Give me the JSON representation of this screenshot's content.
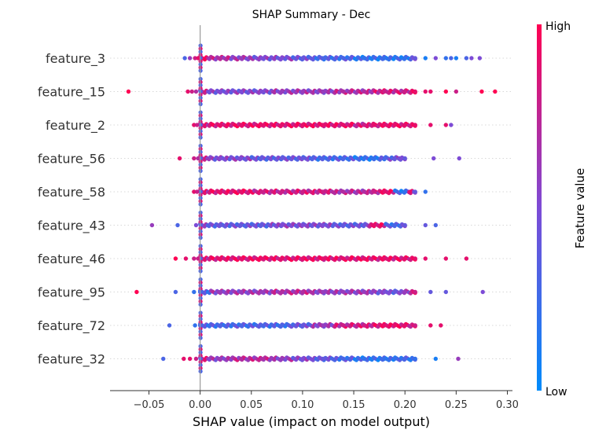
{
  "chart_data": {
    "type": "scatter",
    "title": "SHAP Summary - Dec",
    "xlabel": "SHAP value (impact on model output)",
    "xlim": [
      -0.088,
      0.305
    ],
    "xticks": [
      -0.05,
      0.0,
      0.05,
      0.1,
      0.15,
      0.2,
      0.25,
      0.3
    ],
    "xtick_labels": [
      "−0.05",
      "0.00",
      "0.05",
      "0.10",
      "0.15",
      "0.20",
      "0.25",
      "0.30"
    ],
    "colorbar": {
      "label": "Feature value",
      "high": "High",
      "low": "Low",
      "high_color": "#ff0052",
      "low_color": "#008bfb"
    },
    "features": [
      {
        "name": "feature_3",
        "x": [
          -0.015,
          -0.01,
          -0.005,
          -0.002,
          0.02,
          0.04,
          0.06,
          0.08,
          0.1,
          0.12,
          0.14,
          0.16,
          0.18,
          0.2,
          0.21,
          0.22,
          0.23,
          0.24,
          0.245,
          0.25,
          0.26,
          0.265,
          0.273
        ],
        "v": [
          0.3,
          0.6,
          0.8,
          0.9,
          0.7,
          0.6,
          0.5,
          0.5,
          0.4,
          0.3,
          0.3,
          0.2,
          0.2,
          0.2,
          0.4,
          0.1,
          0.5,
          0.2,
          0.3,
          0.1,
          0.3,
          0.5,
          0.5
        ]
      },
      {
        "name": "feature_15",
        "x": [
          -0.07,
          -0.012,
          -0.008,
          -0.004,
          0.02,
          0.04,
          0.06,
          0.08,
          0.1,
          0.12,
          0.14,
          0.16,
          0.18,
          0.2,
          0.21,
          0.22,
          0.225,
          0.24,
          0.25,
          0.275,
          0.288
        ],
        "v": [
          1.0,
          0.9,
          0.8,
          0.7,
          0.5,
          0.5,
          0.5,
          0.6,
          0.6,
          0.6,
          0.7,
          0.7,
          0.8,
          0.8,
          0.9,
          0.9,
          0.9,
          1.0,
          0.8,
          1.0,
          1.0
        ]
      },
      {
        "name": "feature_2",
        "x": [
          -0.006,
          -0.003,
          0.02,
          0.04,
          0.06,
          0.08,
          0.1,
          0.12,
          0.14,
          0.16,
          0.17,
          0.18,
          0.19,
          0.2,
          0.21,
          0.225,
          0.24,
          0.245
        ],
        "v": [
          0.9,
          0.8,
          0.9,
          0.9,
          0.9,
          0.9,
          0.9,
          0.9,
          0.9,
          0.8,
          0.9,
          0.9,
          0.9,
          0.9,
          0.9,
          0.9,
          0.9,
          0.5
        ]
      },
      {
        "name": "feature_56",
        "x": [
          -0.02,
          -0.006,
          -0.002,
          0.02,
          0.04,
          0.06,
          0.08,
          0.1,
          0.12,
          0.14,
          0.16,
          0.17,
          0.18,
          0.19,
          0.195,
          0.2,
          0.228,
          0.253
        ],
        "v": [
          0.9,
          0.8,
          0.7,
          0.5,
          0.5,
          0.4,
          0.4,
          0.4,
          0.3,
          0.3,
          0.2,
          0.2,
          0.3,
          0.4,
          0.5,
          0.4,
          0.5,
          0.5
        ]
      },
      {
        "name": "feature_58",
        "x": [
          -0.006,
          -0.003,
          0.02,
          0.04,
          0.06,
          0.08,
          0.1,
          0.12,
          0.14,
          0.16,
          0.17,
          0.18,
          0.2,
          0.205,
          0.21,
          0.22
        ],
        "v": [
          0.9,
          0.8,
          0.9,
          0.9,
          0.8,
          0.8,
          0.8,
          0.8,
          0.7,
          0.7,
          0.8,
          0.9,
          0.2,
          0.9,
          0.4,
          0.2
        ]
      },
      {
        "name": "feature_43",
        "x": [
          -0.047,
          -0.022,
          -0.004,
          0.02,
          0.04,
          0.06,
          0.08,
          0.1,
          0.12,
          0.14,
          0.16,
          0.17,
          0.19,
          0.2,
          0.22,
          0.23
        ],
        "v": [
          0.6,
          0.3,
          0.5,
          0.4,
          0.4,
          0.4,
          0.5,
          0.5,
          0.5,
          0.4,
          0.4,
          0.9,
          0.3,
          0.4,
          0.4,
          0.3
        ]
      },
      {
        "name": "feature_46",
        "x": [
          -0.024,
          -0.014,
          -0.006,
          -0.002,
          0.02,
          0.04,
          0.06,
          0.08,
          0.1,
          0.12,
          0.14,
          0.16,
          0.18,
          0.2,
          0.21,
          0.22,
          0.24,
          0.26
        ],
        "v": [
          1.0,
          0.9,
          0.8,
          0.8,
          0.9,
          0.9,
          0.9,
          0.9,
          0.9,
          0.9,
          0.9,
          0.9,
          0.9,
          0.9,
          0.9,
          0.9,
          0.9,
          0.9
        ]
      },
      {
        "name": "feature_95",
        "x": [
          -0.062,
          -0.024,
          -0.006,
          0.0,
          0.02,
          0.04,
          0.06,
          0.08,
          0.1,
          0.12,
          0.14,
          0.16,
          0.18,
          0.19,
          0.2,
          0.21,
          0.225,
          0.24,
          0.276
        ],
        "v": [
          1.0,
          0.3,
          0.2,
          0.3,
          0.6,
          0.6,
          0.6,
          0.7,
          0.7,
          0.6,
          0.6,
          0.6,
          0.5,
          0.4,
          0.6,
          0.8,
          0.4,
          0.4,
          0.5
        ]
      },
      {
        "name": "feature_72",
        "x": [
          -0.03,
          -0.005,
          0.0,
          0.02,
          0.04,
          0.06,
          0.08,
          0.1,
          0.12,
          0.14,
          0.16,
          0.18,
          0.19,
          0.2,
          0.21,
          0.225,
          0.235
        ],
        "v": [
          0.3,
          0.2,
          0.3,
          0.3,
          0.3,
          0.3,
          0.3,
          0.4,
          0.6,
          0.8,
          0.8,
          0.9,
          0.9,
          0.9,
          0.8,
          0.9,
          0.9
        ]
      },
      {
        "name": "feature_32",
        "x": [
          -0.036,
          -0.016,
          -0.01,
          -0.004,
          0.02,
          0.04,
          0.06,
          0.08,
          0.1,
          0.12,
          0.14,
          0.16,
          0.18,
          0.19,
          0.2,
          0.21,
          0.23,
          0.252
        ],
        "v": [
          0.3,
          0.9,
          0.9,
          0.8,
          0.6,
          0.7,
          0.7,
          0.6,
          0.5,
          0.4,
          0.3,
          0.2,
          0.2,
          0.2,
          0.3,
          0.2,
          0.1,
          0.6
        ]
      }
    ]
  }
}
